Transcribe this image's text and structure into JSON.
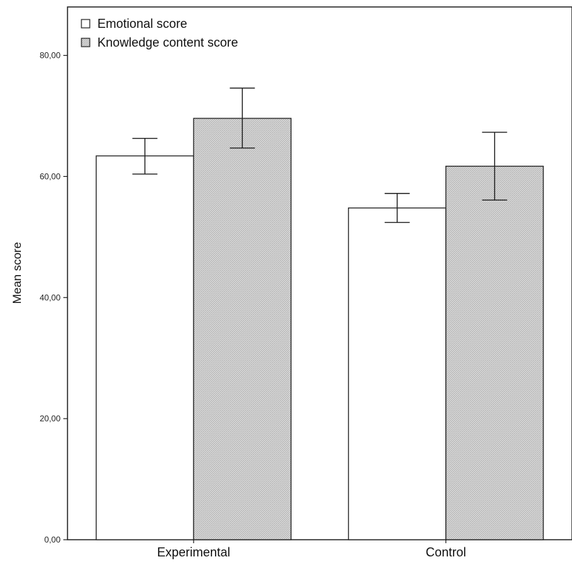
{
  "chart_data": {
    "type": "bar",
    "ylabel": "Mean score",
    "xlabel": "",
    "ylim": [
      0,
      88
    ],
    "yticks": [
      0,
      20,
      40,
      60,
      80
    ],
    "ytick_labels": [
      "0,00",
      "20,00",
      "40,00",
      "60,00",
      "80,00"
    ],
    "categories": [
      "Experimental",
      "Control"
    ],
    "series": [
      {
        "name": "Emotional score",
        "fill": "#ffffff",
        "values": [
          63.4,
          54.8
        ],
        "error_low": [
          60.4,
          52.4
        ],
        "error_high": [
          66.3,
          57.2
        ]
      },
      {
        "name": "Knowledge content score",
        "fill": "#d9d9d9",
        "pattern": "hatched",
        "values": [
          69.6,
          61.7
        ],
        "error_low": [
          64.7,
          56.1
        ],
        "error_high": [
          74.6,
          67.3
        ]
      }
    ],
    "legend_position": "top-left",
    "grid": false
  }
}
